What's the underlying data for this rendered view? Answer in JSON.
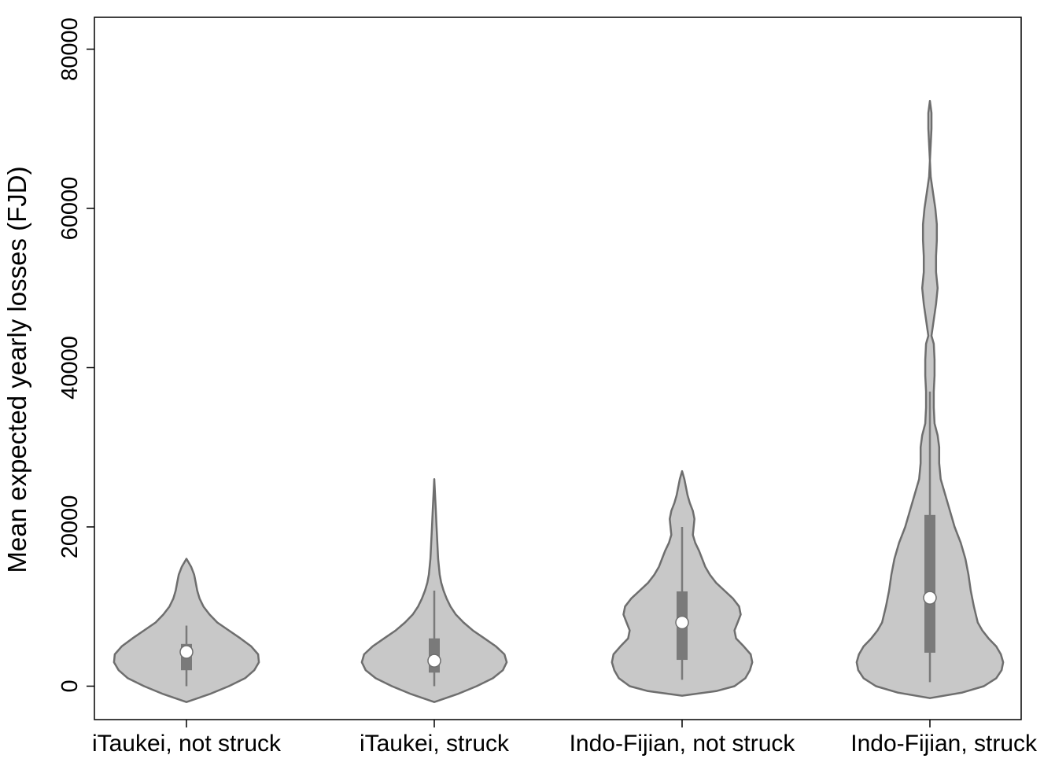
{
  "chart_data": {
    "type": "violin",
    "ylabel": "Mean expected yearly losses (FJD)",
    "yticks": [
      0,
      20000,
      40000,
      60000,
      80000
    ],
    "ylim": [
      -4200,
      84000
    ],
    "categories": [
      "iTaukei, not struck",
      "iTaukei, struck",
      "Indo-Fijian, not struck",
      "Indo-Fijian, struck"
    ],
    "colors": {
      "fill": "#c8c8c8",
      "outline": "#6e6e6e",
      "box": "#7a7a7a",
      "median": "#ffffff"
    },
    "grid": false,
    "violins": [
      {
        "category": "iTaukei, not struck",
        "median": 4300,
        "q1": 2000,
        "q3": 5300,
        "whisker_low": 0,
        "whisker_high": 7600,
        "range": [
          -2000,
          16000
        ],
        "density": [
          [
            -2000,
            0
          ],
          [
            -1000,
            30
          ],
          [
            0,
            55
          ],
          [
            1000,
            76
          ],
          [
            2000,
            88
          ],
          [
            3000,
            94
          ],
          [
            4000,
            93
          ],
          [
            5000,
            84
          ],
          [
            6000,
            70
          ],
          [
            7000,
            55
          ],
          [
            8000,
            40
          ],
          [
            9000,
            30
          ],
          [
            10000,
            22
          ],
          [
            11000,
            17
          ],
          [
            12000,
            14
          ],
          [
            13000,
            12
          ],
          [
            14000,
            10
          ],
          [
            15000,
            6
          ],
          [
            16000,
            0
          ]
        ]
      },
      {
        "category": "iTaukei, struck",
        "median": 3200,
        "q1": 1700,
        "q3": 6000,
        "whisker_low": 0,
        "whisker_high": 12000,
        "range": [
          -2000,
          26000
        ],
        "density": [
          [
            -2000,
            0
          ],
          [
            -1000,
            30
          ],
          [
            0,
            55
          ],
          [
            1000,
            76
          ],
          [
            2000,
            89
          ],
          [
            3000,
            94
          ],
          [
            4000,
            91
          ],
          [
            5000,
            80
          ],
          [
            6000,
            65
          ],
          [
            7000,
            50
          ],
          [
            8000,
            38
          ],
          [
            9000,
            28
          ],
          [
            10000,
            21
          ],
          [
            11000,
            16
          ],
          [
            12000,
            12
          ],
          [
            13000,
            9
          ],
          [
            14000,
            7
          ],
          [
            16000,
            5
          ],
          [
            18000,
            4
          ],
          [
            20000,
            3
          ],
          [
            22000,
            2
          ],
          [
            24000,
            1
          ],
          [
            26000,
            0
          ]
        ]
      },
      {
        "category": "Indo-Fijian, not struck",
        "median": 8000,
        "q1": 3300,
        "q3": 11900,
        "whisker_low": 800,
        "whisker_high": 20000,
        "range": [
          -1200,
          27000
        ],
        "density": [
          [
            -1200,
            0
          ],
          [
            -600,
            45
          ],
          [
            0,
            68
          ],
          [
            1000,
            82
          ],
          [
            2000,
            88
          ],
          [
            3000,
            91
          ],
          [
            4000,
            89
          ],
          [
            5000,
            80
          ],
          [
            6000,
            70
          ],
          [
            7000,
            68
          ],
          [
            8000,
            72
          ],
          [
            9000,
            76
          ],
          [
            10000,
            74
          ],
          [
            11000,
            66
          ],
          [
            12000,
            55
          ],
          [
            13000,
            44
          ],
          [
            14000,
            36
          ],
          [
            15000,
            30
          ],
          [
            16000,
            26
          ],
          [
            17000,
            22
          ],
          [
            18000,
            17
          ],
          [
            19000,
            14
          ],
          [
            20000,
            15
          ],
          [
            21000,
            16
          ],
          [
            22000,
            14
          ],
          [
            23000,
            10
          ],
          [
            24000,
            7
          ],
          [
            25000,
            5
          ],
          [
            26000,
            3
          ],
          [
            27000,
            0
          ]
        ]
      },
      {
        "category": "Indo-Fijian, struck",
        "median": 11100,
        "q1": 4200,
        "q3": 21500,
        "whisker_low": 500,
        "whisker_high": 37000,
        "range": [
          -1500,
          73500
        ],
        "density": [
          [
            -1500,
            0
          ],
          [
            -800,
            42
          ],
          [
            0,
            70
          ],
          [
            1000,
            86
          ],
          [
            2000,
            93
          ],
          [
            3000,
            95
          ],
          [
            4000,
            92
          ],
          [
            5000,
            86
          ],
          [
            6000,
            76
          ],
          [
            7000,
            68
          ],
          [
            8000,
            62
          ],
          [
            10000,
            57
          ],
          [
            12000,
            53
          ],
          [
            14000,
            50
          ],
          [
            16000,
            46
          ],
          [
            18000,
            40
          ],
          [
            20000,
            32
          ],
          [
            22000,
            26
          ],
          [
            24000,
            20
          ],
          [
            26000,
            14
          ],
          [
            28000,
            12
          ],
          [
            30000,
            12
          ],
          [
            31500,
            10
          ],
          [
            33000,
            6
          ],
          [
            35000,
            5
          ],
          [
            37000,
            5
          ],
          [
            39000,
            6
          ],
          [
            41000,
            6
          ],
          [
            43000,
            5
          ],
          [
            44000,
            2
          ],
          [
            46000,
            5
          ],
          [
            48000,
            8
          ],
          [
            50000,
            10
          ],
          [
            52000,
            8
          ],
          [
            54000,
            8
          ],
          [
            56000,
            9
          ],
          [
            58000,
            9
          ],
          [
            60000,
            7
          ],
          [
            62000,
            4
          ],
          [
            64000,
            1
          ],
          [
            66000,
            0
          ],
          [
            68000,
            1
          ],
          [
            70000,
            2
          ],
          [
            72000,
            2
          ],
          [
            73500,
            0
          ]
        ]
      }
    ]
  }
}
